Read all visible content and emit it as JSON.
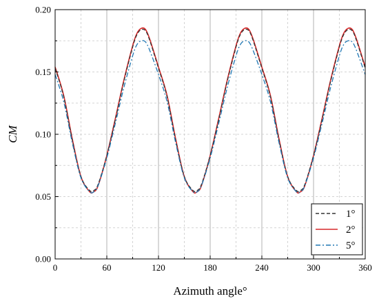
{
  "chart_data": {
    "type": "line",
    "xlabel": "Azimuth angle°",
    "ylabel": "CM",
    "xlim": [
      0,
      360
    ],
    "ylim": [
      0.0,
      0.2
    ],
    "xticks": [
      0,
      60,
      120,
      180,
      240,
      300,
      360
    ],
    "xtick_labels": [
      "0",
      "60",
      "120",
      "180",
      "240",
      "300",
      "360"
    ],
    "yticks": [
      0.0,
      0.05,
      0.1,
      0.15,
      0.2
    ],
    "ytick_labels": [
      "0.00",
      "0.05",
      "0.10",
      "0.15",
      "0.20"
    ],
    "grid": true,
    "legend_position": "bottom-right",
    "x": [
      0,
      10,
      20,
      30,
      40,
      45,
      50,
      60,
      70,
      80,
      90,
      95,
      100,
      105,
      110,
      120,
      130,
      140,
      150,
      160,
      165,
      170,
      180,
      190,
      200,
      210,
      215,
      220,
      225,
      230,
      240,
      250,
      260,
      270,
      280,
      285,
      290,
      300,
      310,
      320,
      330,
      335,
      340,
      345,
      350,
      360
    ],
    "series": [
      {
        "name": "1°",
        "color": "#333333",
        "style": "dashed",
        "values": [
          0.153,
          0.13,
          0.095,
          0.066,
          0.055,
          0.055,
          0.06,
          0.083,
          0.112,
          0.143,
          0.17,
          0.18,
          0.184,
          0.183,
          0.175,
          0.153,
          0.13,
          0.095,
          0.066,
          0.055,
          0.055,
          0.06,
          0.083,
          0.112,
          0.143,
          0.17,
          0.18,
          0.184,
          0.183,
          0.175,
          0.153,
          0.13,
          0.095,
          0.066,
          0.055,
          0.055,
          0.06,
          0.083,
          0.112,
          0.143,
          0.17,
          0.18,
          0.184,
          0.183,
          0.175,
          0.153
        ]
      },
      {
        "name": "2°",
        "color": "#d62728",
        "style": "solid",
        "values": [
          0.154,
          0.131,
          0.096,
          0.066,
          0.054,
          0.054,
          0.059,
          0.083,
          0.113,
          0.144,
          0.171,
          0.181,
          0.185,
          0.184,
          0.176,
          0.154,
          0.131,
          0.096,
          0.066,
          0.054,
          0.054,
          0.059,
          0.083,
          0.113,
          0.144,
          0.171,
          0.181,
          0.185,
          0.184,
          0.176,
          0.154,
          0.131,
          0.096,
          0.066,
          0.054,
          0.054,
          0.059,
          0.083,
          0.113,
          0.144,
          0.171,
          0.181,
          0.185,
          0.184,
          0.176,
          0.154
        ]
      },
      {
        "name": "5°",
        "color": "#1f77b4",
        "style": "dashdot",
        "values": [
          0.148,
          0.126,
          0.093,
          0.065,
          0.054,
          0.054,
          0.059,
          0.081,
          0.109,
          0.138,
          0.163,
          0.172,
          0.175,
          0.174,
          0.167,
          0.148,
          0.126,
          0.093,
          0.065,
          0.054,
          0.054,
          0.059,
          0.081,
          0.109,
          0.138,
          0.163,
          0.172,
          0.175,
          0.174,
          0.167,
          0.148,
          0.126,
          0.093,
          0.065,
          0.054,
          0.054,
          0.059,
          0.081,
          0.109,
          0.138,
          0.163,
          0.172,
          0.175,
          0.174,
          0.167,
          0.148
        ]
      }
    ]
  }
}
